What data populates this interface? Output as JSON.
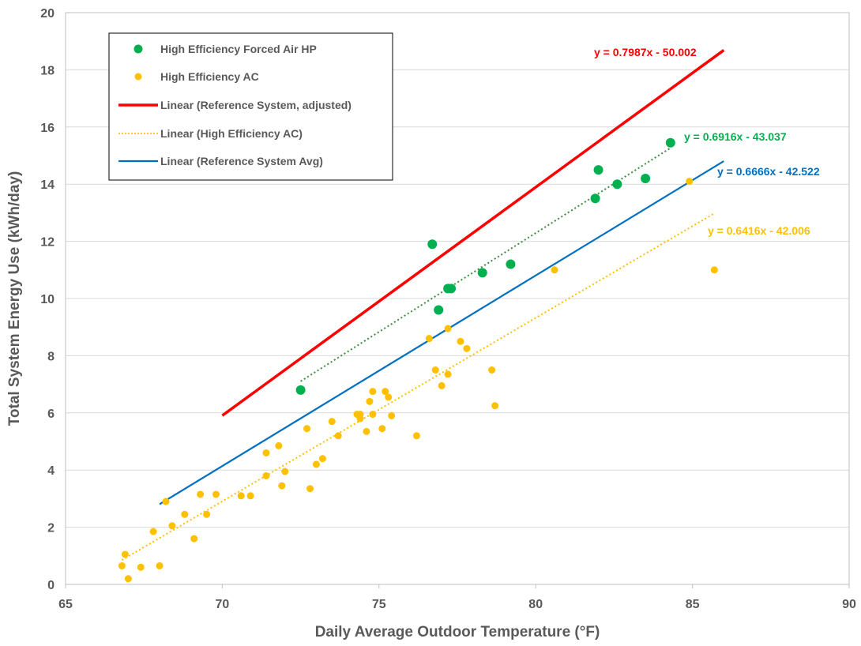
{
  "chart_data": {
    "type": "scatter",
    "xlabel": "Daily Average Outdoor Temperature (°F)",
    "ylabel": "Total System Energy Use (kWh/day)",
    "xlim": [
      65,
      90
    ],
    "ylim": [
      0,
      20
    ],
    "xticks": [
      "65",
      "70",
      "75",
      "80",
      "85",
      "90"
    ],
    "yticks": [
      "0",
      "2",
      "4",
      "6",
      "8",
      "10",
      "12",
      "14",
      "16",
      "18",
      "20"
    ],
    "grid": "horizontal",
    "legend_position": "top-left",
    "series": [
      {
        "name": "High Efficiency Forced Air HP",
        "kind": "scatter",
        "color": "#00b050",
        "points": [
          [
            72.5,
            6.8
          ],
          [
            76.7,
            11.9
          ],
          [
            76.9,
            9.6
          ],
          [
            77.2,
            10.35
          ],
          [
            77.3,
            10.35
          ],
          [
            78.3,
            10.9
          ],
          [
            79.2,
            11.2
          ],
          [
            81.9,
            13.5
          ],
          [
            82.0,
            14.5
          ],
          [
            82.6,
            14.0
          ],
          [
            83.5,
            14.2
          ],
          [
            84.3,
            15.45
          ]
        ]
      },
      {
        "name": "High Efficiency AC",
        "kind": "scatter",
        "color": "#ffc000",
        "points": [
          [
            66.8,
            0.65
          ],
          [
            66.9,
            1.05
          ],
          [
            67.0,
            0.2
          ],
          [
            67.4,
            0.6
          ],
          [
            67.8,
            1.85
          ],
          [
            68.0,
            0.65
          ],
          [
            68.2,
            2.9
          ],
          [
            68.4,
            2.05
          ],
          [
            68.8,
            2.45
          ],
          [
            69.1,
            1.6
          ],
          [
            69.3,
            3.15
          ],
          [
            69.5,
            2.45
          ],
          [
            69.8,
            3.15
          ],
          [
            70.6,
            3.1
          ],
          [
            70.9,
            3.1
          ],
          [
            71.4,
            4.6
          ],
          [
            71.4,
            3.8
          ],
          [
            71.8,
            4.85
          ],
          [
            71.9,
            3.45
          ],
          [
            72.0,
            3.95
          ],
          [
            72.7,
            5.45
          ],
          [
            72.8,
            3.35
          ],
          [
            73.0,
            4.2
          ],
          [
            73.2,
            4.4
          ],
          [
            73.5,
            5.7
          ],
          [
            73.7,
            5.2
          ],
          [
            74.3,
            5.95
          ],
          [
            74.4,
            5.95
          ],
          [
            74.4,
            5.8
          ],
          [
            74.6,
            5.35
          ],
          [
            74.7,
            6.4
          ],
          [
            74.8,
            6.75
          ],
          [
            74.8,
            5.95
          ],
          [
            75.1,
            5.45
          ],
          [
            75.2,
            6.75
          ],
          [
            75.3,
            6.55
          ],
          [
            75.4,
            5.9
          ],
          [
            76.2,
            5.2
          ],
          [
            76.6,
            8.6
          ],
          [
            76.8,
            7.5
          ],
          [
            77.0,
            6.95
          ],
          [
            77.2,
            8.95
          ],
          [
            77.2,
            7.35
          ],
          [
            77.6,
            8.5
          ],
          [
            77.8,
            8.25
          ],
          [
            78.6,
            7.5
          ],
          [
            78.7,
            6.25
          ],
          [
            80.6,
            11.0
          ],
          [
            84.9,
            14.1
          ],
          [
            85.7,
            11.0
          ]
        ]
      },
      {
        "name": "Linear (Reference System, adjusted)",
        "kind": "line",
        "color": "#ff0000",
        "style": "solid",
        "slope": 0.7987,
        "intercept": -50.002,
        "x_range": [
          70,
          86
        ],
        "equation": "y = 0.7987x - 50.002"
      },
      {
        "name": "Linear (High Efficiency AC)",
        "kind": "line",
        "color": "#ffc000",
        "style": "dotted",
        "slope": 0.6416,
        "intercept": -42.006,
        "x_range": [
          66.8,
          85.7
        ],
        "equation": "y = 0.6416x - 42.006"
      },
      {
        "name": "Linear (Reference System Avg)",
        "kind": "line",
        "color": "#0070c0",
        "style": "solid",
        "slope": 0.6666,
        "intercept": -42.522,
        "x_range": [
          68,
          86
        ],
        "equation": "y = 0.6666x - 42.522"
      },
      {
        "name": "",
        "kind": "line",
        "color": "#3c8c3c",
        "style": "dotted",
        "slope": 0.6916,
        "intercept": -43.037,
        "x_range": [
          72.5,
          84.3
        ],
        "equation": "y = 0.6916x - 43.037"
      }
    ],
    "legend": [
      "High Efficiency Forced Air HP",
      "High Efficiency AC",
      "Linear (Reference System, adjusted)",
      "Linear (High Efficiency AC)",
      "Linear (Reference System Avg)"
    ]
  }
}
